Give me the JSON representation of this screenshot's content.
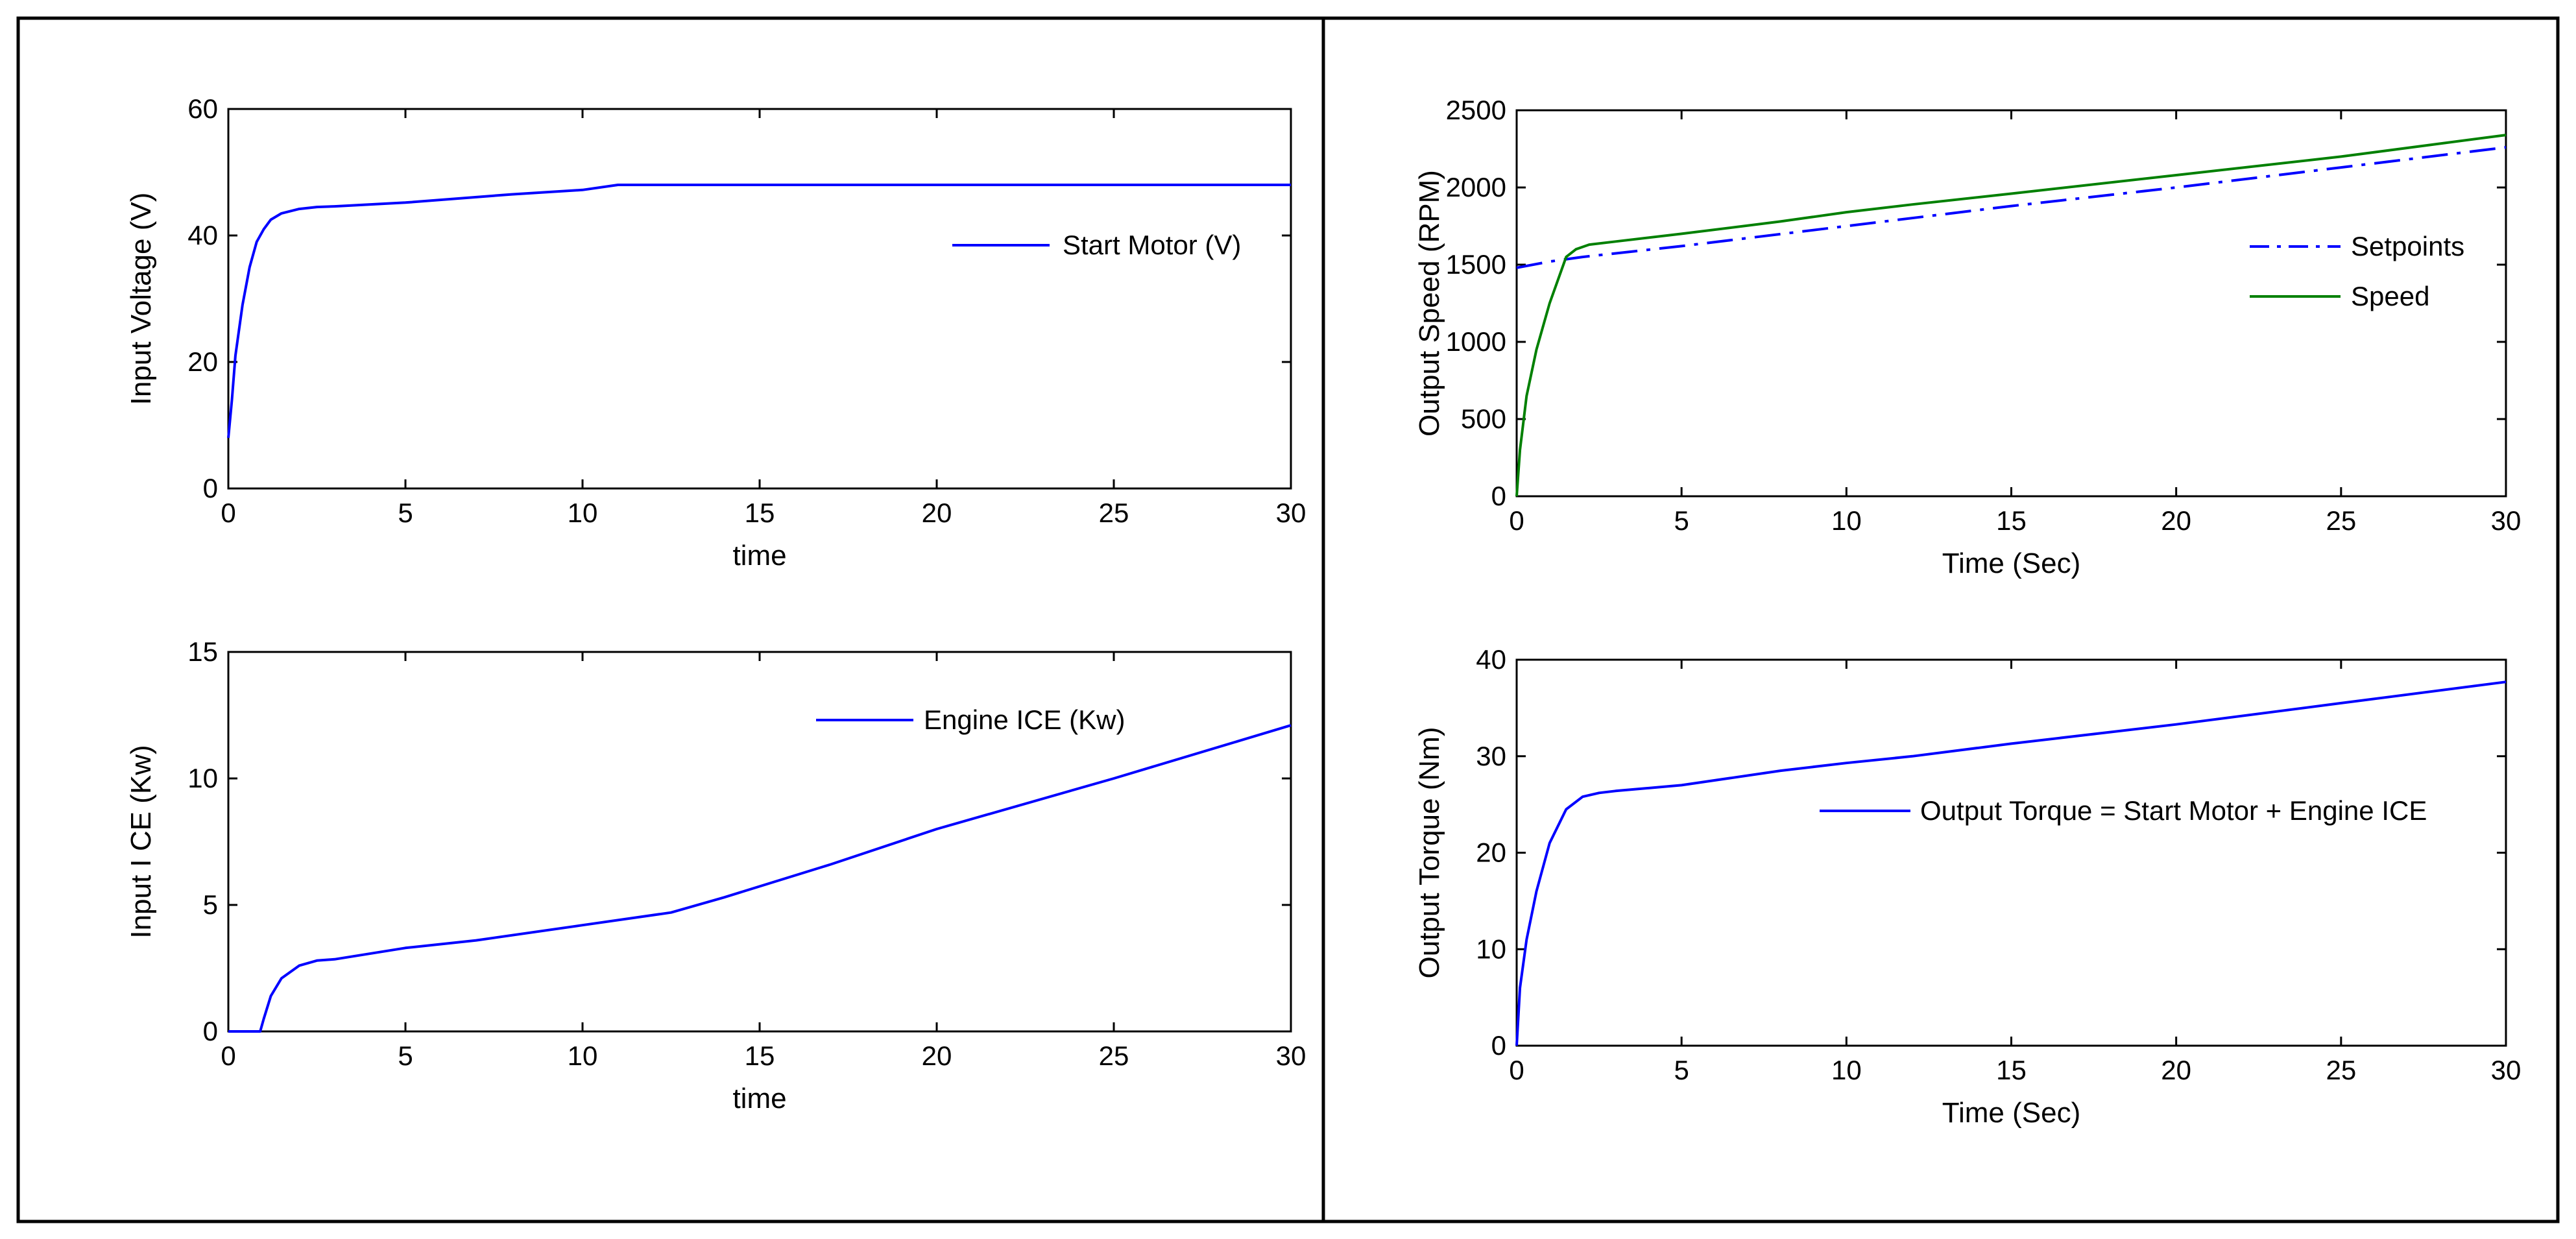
{
  "chart_data": [
    {
      "id": "voltage",
      "type": "line",
      "xlabel": "time",
      "ylabel": "Input Voltage (V)",
      "xlim": [
        0,
        30
      ],
      "ylim": [
        0,
        60
      ],
      "xticks": [
        0,
        5,
        10,
        15,
        20,
        25,
        30
      ],
      "yticks": [
        0,
        20,
        40,
        60
      ],
      "legend": "upper-right",
      "series": [
        {
          "name": "Start Motor (V)",
          "color": "#0000ff",
          "dash": "solid",
          "x": [
            0,
            0.1,
            0.2,
            0.4,
            0.6,
            0.8,
            1.0,
            1.2,
            1.5,
            2.0,
            2.5,
            3,
            5,
            8,
            10,
            11,
            15,
            20,
            25,
            30
          ],
          "y": [
            8,
            14,
            21,
            29,
            35,
            39,
            41,
            42.5,
            43.5,
            44.2,
            44.5,
            44.6,
            45.2,
            46.5,
            47.2,
            48,
            48,
            48,
            48,
            48
          ]
        }
      ]
    },
    {
      "id": "ice",
      "type": "line",
      "xlabel": "time",
      "ylabel": "Input I CE (Kw)",
      "xlim": [
        0,
        30
      ],
      "ylim": [
        0,
        15
      ],
      "xticks": [
        0,
        5,
        10,
        15,
        20,
        25,
        30
      ],
      "yticks": [
        0,
        5,
        10,
        15
      ],
      "legend": "upper-right",
      "series": [
        {
          "name": "Engine ICE (Kw)",
          "color": "#0000ff",
          "dash": "solid",
          "x": [
            0,
            0.9,
            1.0,
            1.2,
            1.5,
            2.0,
            2.5,
            3,
            5,
            7,
            10,
            12.5,
            14,
            17,
            20,
            25,
            30
          ],
          "y": [
            0,
            0,
            0.5,
            1.4,
            2.1,
            2.6,
            2.8,
            2.85,
            3.3,
            3.6,
            4.2,
            4.7,
            5.3,
            6.6,
            8.0,
            10.0,
            12.1
          ]
        }
      ]
    },
    {
      "id": "speed",
      "type": "line",
      "xlabel": "Time (Sec)",
      "ylabel": "Output Speed (RPM)",
      "xlim": [
        0,
        30
      ],
      "ylim": [
        0,
        2500
      ],
      "xticks": [
        0,
        5,
        10,
        15,
        20,
        25,
        30
      ],
      "yticks": [
        0,
        500,
        1000,
        1500,
        2000,
        2500
      ],
      "legend": "upper-right",
      "series": [
        {
          "name": "Setpoints",
          "color": "#0000ff",
          "dash": "dashdot",
          "x": [
            0,
            0.5,
            1,
            2,
            5,
            10,
            15,
            20,
            25,
            30
          ],
          "y": [
            1480,
            1500,
            1520,
            1550,
            1620,
            1750,
            1880,
            2000,
            2130,
            2260
          ]
        },
        {
          "name": "Speed",
          "color": "#008000",
          "dash": "solid",
          "x": [
            0,
            0.1,
            0.3,
            0.6,
            1.0,
            1.5,
            1.8,
            2.2,
            3,
            5,
            8,
            10,
            12,
            15,
            20,
            25,
            30
          ],
          "y": [
            0,
            300,
            650,
            950,
            1250,
            1550,
            1600,
            1630,
            1650,
            1700,
            1780,
            1840,
            1890,
            1960,
            2080,
            2200,
            2340
          ]
        }
      ]
    },
    {
      "id": "torque",
      "type": "line",
      "xlabel": "Time (Sec)",
      "ylabel": "Output Torque (Nm)",
      "xlim": [
        0,
        30
      ],
      "ylim": [
        0,
        40
      ],
      "xticks": [
        0,
        5,
        10,
        15,
        20,
        25,
        30
      ],
      "yticks": [
        0,
        10,
        20,
        30,
        40
      ],
      "legend": "upper-right",
      "series": [
        {
          "name": "Output Torque = Start Motor + Engine ICE",
          "color": "#0000ff",
          "dash": "solid",
          "x": [
            0,
            0.1,
            0.3,
            0.6,
            1.0,
            1.5,
            2.0,
            2.5,
            3,
            5,
            8,
            10,
            12,
            15,
            20,
            25,
            30
          ],
          "y": [
            0,
            6,
            11,
            16,
            21,
            24.5,
            25.8,
            26.2,
            26.4,
            27,
            28.5,
            29.3,
            30,
            31.3,
            33.3,
            35.5,
            37.7
          ]
        }
      ]
    }
  ]
}
